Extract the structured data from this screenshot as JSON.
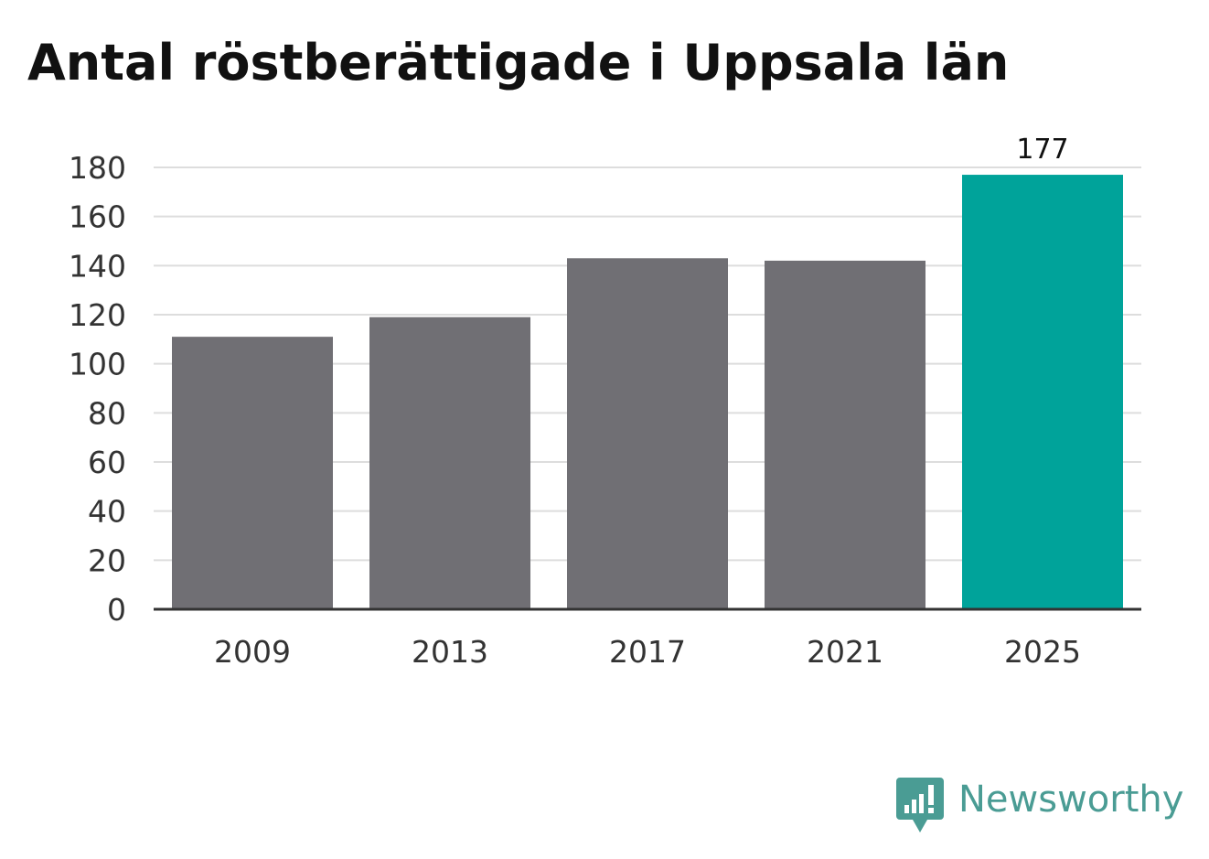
{
  "title": "Antal röstberättigade i Uppsala län",
  "brand": {
    "name": "Newsworthy",
    "color": "#4a9c94"
  },
  "colors": {
    "bar": "#706f74",
    "highlight": "#00a39a",
    "grid": "#dddddd",
    "axis": "#333333",
    "text": "#333333"
  },
  "chart_data": {
    "type": "bar",
    "categories": [
      "2009",
      "2013",
      "2017",
      "2021",
      "2025"
    ],
    "values": [
      111,
      119,
      143,
      142,
      177
    ],
    "highlight_index": 4,
    "data_labels": [
      {
        "index": 4,
        "text": "177"
      }
    ],
    "ylim": [
      0,
      180
    ],
    "yticks": [
      0,
      20,
      40,
      60,
      80,
      100,
      120,
      140,
      160,
      180
    ],
    "grid": true,
    "legend": "none",
    "xlabel": "",
    "ylabel": ""
  }
}
